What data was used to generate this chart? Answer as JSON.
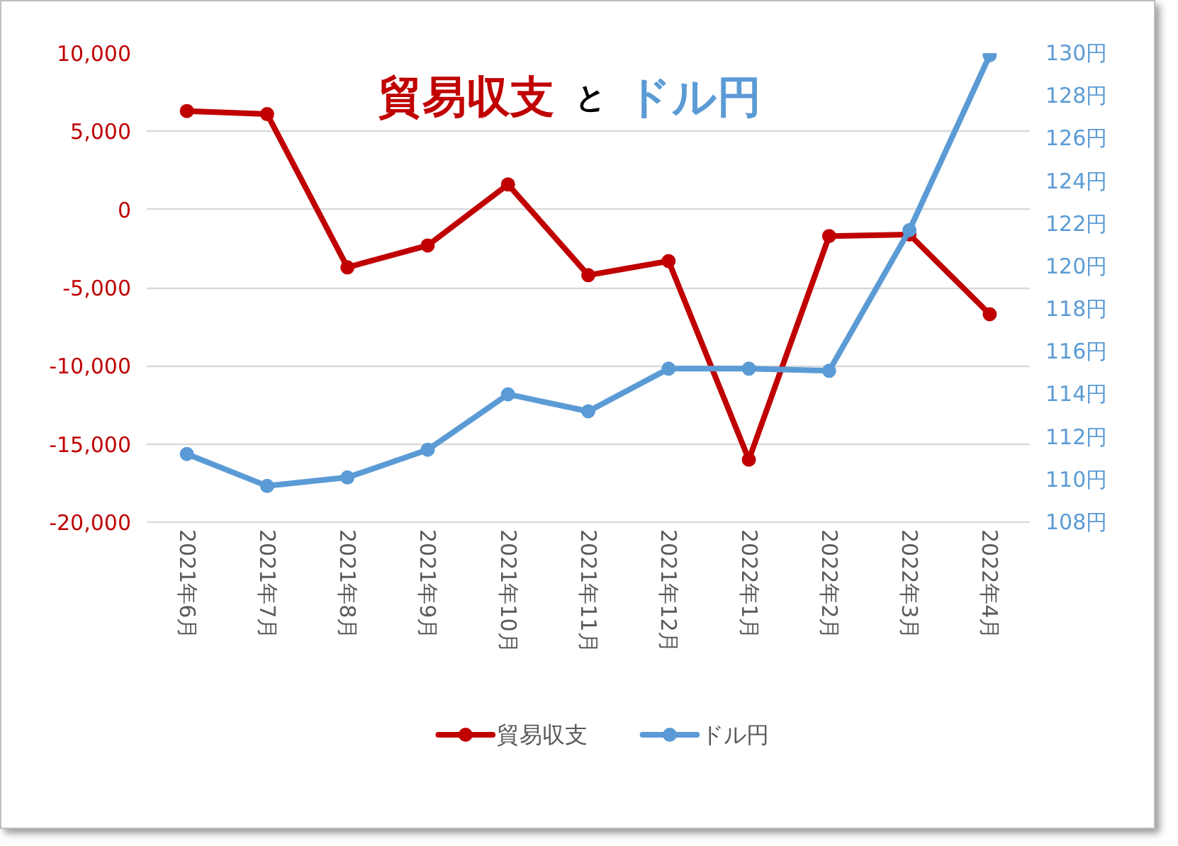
{
  "chart_data": {
    "type": "line",
    "title": "貿易収支 と ドル円",
    "categories": [
      "2021年6月",
      "2021年7月",
      "2021年8月",
      "2021年9月",
      "2021年10月",
      "2021年11月",
      "2021年12月",
      "2022年1月",
      "2022年2月",
      "2022年3月",
      "2022年4月"
    ],
    "series": [
      {
        "name": "貿易収支",
        "color": "#c00000",
        "values": [
          6300,
          6100,
          -3700,
          -2300,
          1600,
          -4200,
          -3300,
          -16000,
          -1700,
          -1600,
          -6700
        ]
      },
      {
        "name": "ドル円",
        "color": "#5b9bd5",
        "axis": "y2",
        "values": [
          111.2,
          109.7,
          110.1,
          111.4,
          114.0,
          113.2,
          115.2,
          115.2,
          115.1,
          121.7,
          129.9
        ]
      }
    ],
    "ylim": [
      -20000,
      10000
    ],
    "yticks": [
      {
        "value": -20000,
        "label": "-20,000"
      },
      {
        "value": -15000,
        "label": "-15,000"
      },
      {
        "value": -10000,
        "label": "-10,000"
      },
      {
        "value": -5000,
        "label": "-5,000"
      },
      0,
      {
        "value": 5000,
        "label": "5,000"
      },
      {
        "value": 10000,
        "label": "10,000"
      }
    ],
    "y2lim": [
      108,
      130
    ],
    "y2ticks": [
      {
        "value": 108,
        "label": "108円"
      },
      {
        "value": 110,
        "label": "110円"
      },
      {
        "value": 112,
        "label": "112円"
      },
      {
        "value": 114,
        "label": "114円"
      },
      {
        "value": 116,
        "label": "116円"
      },
      {
        "value": 118,
        "label": "118円"
      },
      {
        "value": 120,
        "label": "120円"
      },
      {
        "value": 122,
        "label": "122円"
      },
      {
        "value": 124,
        "label": "124円"
      },
      {
        "value": 126,
        "label": "126円"
      },
      {
        "value": 128,
        "label": "128円"
      },
      {
        "value": 130,
        "label": "130円"
      }
    ],
    "grid": "y",
    "legend": "bottom",
    "marker": "circle",
    "line_style": "solid"
  }
}
